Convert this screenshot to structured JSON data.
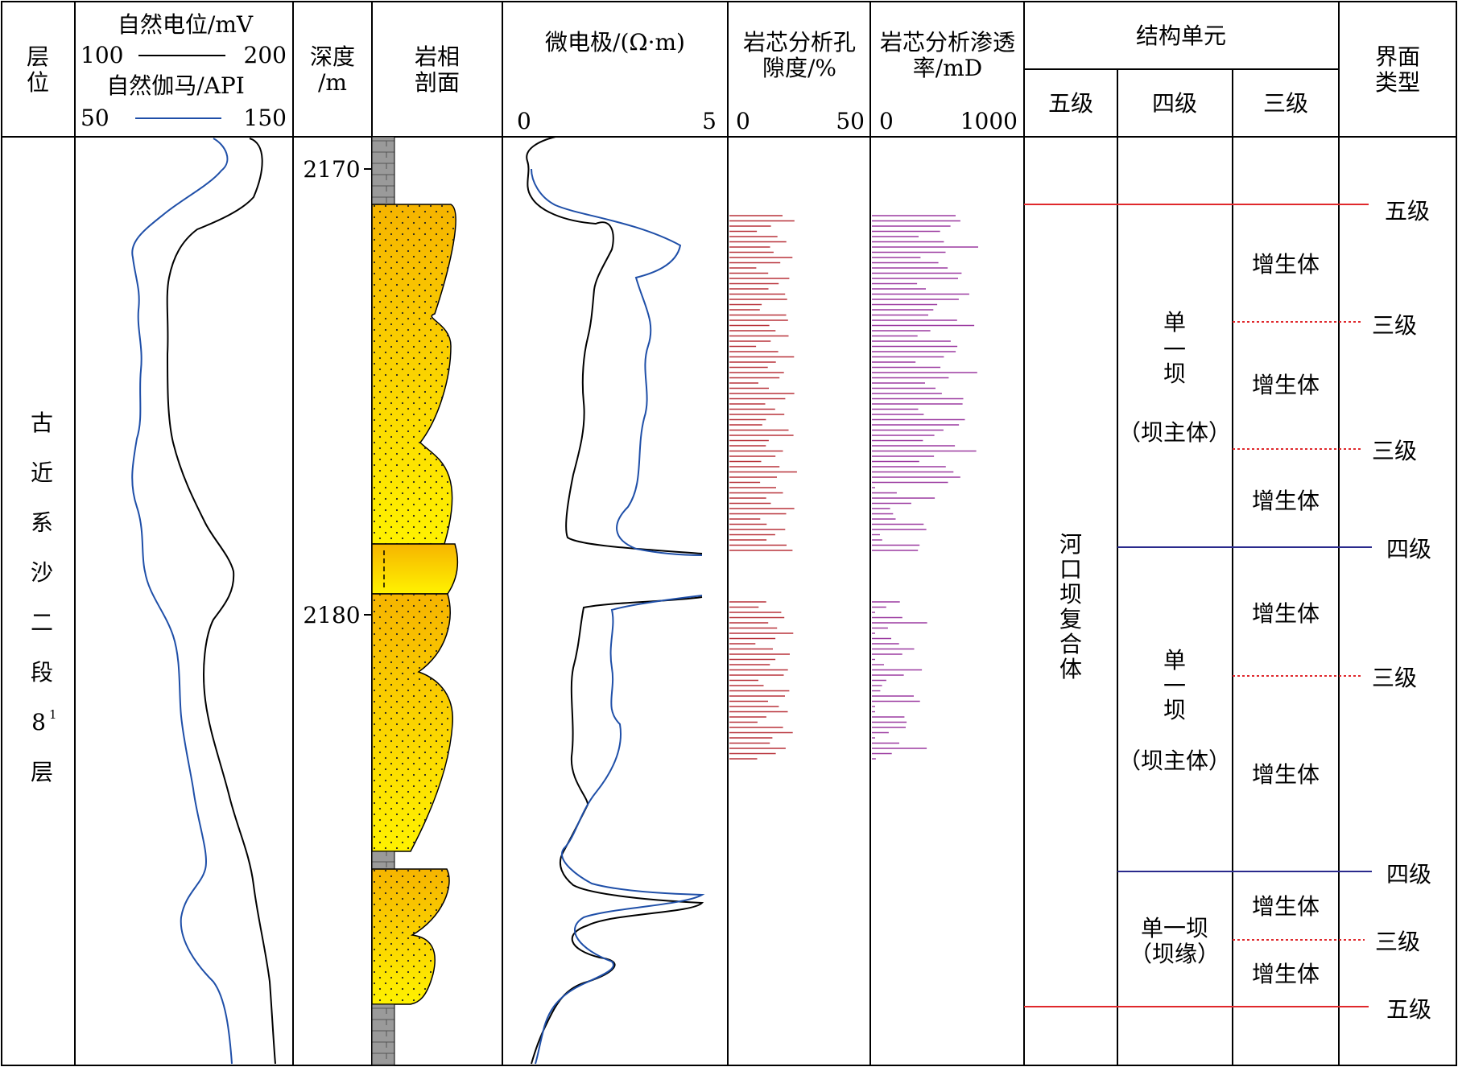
{
  "headers": {
    "layer": [
      "层",
      "位"
    ],
    "sp_title": "自然电位/mV",
    "sp_min": "100",
    "sp_max": "200",
    "gr_title": "自然伽马/API",
    "gr_min": "50",
    "gr_max": "150",
    "depth": [
      "深度",
      "/m"
    ],
    "lith": [
      "岩相",
      "剖面"
    ],
    "microlog": "微电极/(Ω·m)",
    "microlog_min": "0",
    "microlog_max": "5",
    "porosity": [
      "岩芯分析孔",
      "隙度/%"
    ],
    "porosity_min": "0",
    "porosity_max": "50",
    "perm": [
      "岩芯分析渗透",
      "率/mD"
    ],
    "perm_min": "0",
    "perm_max": "1000",
    "structure": "结构单元",
    "level5": "五级",
    "level4": "四级",
    "level3": "三级",
    "interface": [
      "界面",
      "类型"
    ]
  },
  "formation": [
    "古",
    "近",
    "系",
    "沙",
    "二",
    "段",
    "8",
    "层"
  ],
  "formation_sup": "1",
  "depth_ticks": [
    {
      "label": "2170",
      "depth": 2170
    },
    {
      "label": "2180",
      "depth": 2180
    }
  ],
  "units": {
    "level5_unit": [
      "河",
      "口",
      "坝",
      "复",
      "合",
      "体"
    ],
    "dam1": [
      "单",
      "一",
      "坝",
      "（坝主体）"
    ],
    "dam2": [
      "单",
      "一",
      "坝",
      "（坝主体）"
    ],
    "dam3": [
      "单一坝",
      "（坝缘）"
    ],
    "accretion": "增生体"
  },
  "interfaces": [
    {
      "label": "五级",
      "color": "#e0282c"
    },
    {
      "label": "三级",
      "color": "#e0282c"
    },
    {
      "label": "三级",
      "color": "#e0282c"
    },
    {
      "label": "四级",
      "color": "#2a2a8c"
    },
    {
      "label": "三级",
      "color": "#e0282c"
    },
    {
      "label": "四级",
      "color": "#2a2a8c"
    },
    {
      "label": "三级",
      "color": "#e0282c"
    },
    {
      "label": "五级",
      "color": "#e0282c"
    }
  ],
  "colors": {
    "sp_curve": "#000000",
    "gr_curve": "#1f4fa8",
    "porosity_bars": "#b8323a",
    "perm_bars": "#9b3aa0",
    "sand_top": "#f6b400",
    "sand_bottom": "#fff200",
    "mud": "#9a9a9a"
  }
}
